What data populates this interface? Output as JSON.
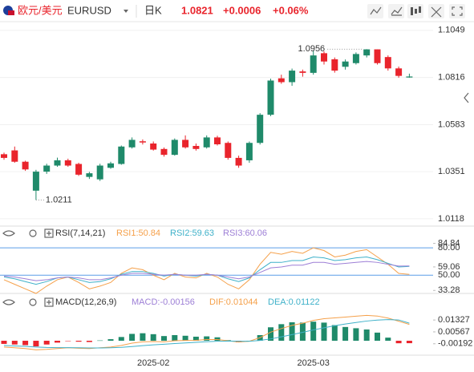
{
  "header": {
    "pair": "欧元/美元",
    "symbol": "EURUSD",
    "period": "日K",
    "price": "1.0821",
    "change": "+0.0006",
    "change_pct": "+0.06%"
  },
  "chart_data": [
    {
      "type": "candlestick",
      "categories": [
        null,
        null,
        null,
        null,
        null,
        null,
        null,
        null,
        null,
        null,
        null,
        null,
        null,
        null,
        "2025-02",
        null,
        null,
        null,
        null,
        null,
        null,
        null,
        null,
        null,
        null,
        null,
        null,
        null,
        null,
        "2025-03",
        null,
        null,
        null,
        null,
        null,
        null,
        null,
        null,
        null
      ],
      "open": [
        1.0437,
        1.0456,
        1.04,
        1.0257,
        1.0351,
        1.0381,
        1.0407,
        1.0389,
        1.0325,
        1.0313,
        1.037,
        1.0389,
        1.0471,
        1.0501,
        1.049,
        1.0463,
        1.0434,
        1.0508,
        1.0478,
        1.0471,
        1.052,
        1.0493,
        1.0419,
        1.0407,
        1.0493,
        1.0632,
        1.0812,
        1.0793,
        1.0846,
        1.0839,
        1.0936,
        1.0906,
        1.0869,
        1.0887,
        1.0925,
        1.0955,
        1.0917,
        1.0861,
        1.0816
      ],
      "high": [
        1.0445,
        1.0475,
        1.0405,
        1.036,
        1.039,
        1.042,
        1.0415,
        1.0395,
        1.035,
        1.039,
        1.04,
        1.048,
        1.052,
        1.051,
        1.05,
        1.047,
        1.0515,
        1.053,
        1.049,
        1.053,
        1.0528,
        1.05,
        1.043,
        1.05,
        1.064,
        1.081,
        1.083,
        1.086,
        1.0855,
        1.095,
        1.0945,
        1.0915,
        1.0905,
        1.094,
        1.0956,
        1.0955,
        1.0925,
        1.087,
        1.0835
      ],
      "low": [
        1.041,
        1.0395,
        1.0355,
        1.0211,
        1.034,
        1.0375,
        1.0375,
        1.033,
        1.0315,
        1.0305,
        1.0365,
        1.0385,
        1.0465,
        1.0485,
        1.0455,
        1.0425,
        1.043,
        1.0465,
        1.0455,
        1.0465,
        1.048,
        1.041,
        1.037,
        1.0395,
        1.0485,
        1.0625,
        1.0785,
        1.0775,
        1.082,
        1.083,
        1.088,
        1.084,
        1.0855,
        1.088,
        1.0915,
        1.088,
        1.085,
        1.0815,
        1.0815
      ],
      "close": [
        1.0419,
        1.04,
        1.0362,
        1.0351,
        1.0381,
        1.0407,
        1.0381,
        1.0336,
        1.0343,
        1.0381,
        1.0392,
        1.0475,
        1.0508,
        1.0495,
        1.046,
        1.0434,
        1.0508,
        1.0471,
        1.0463,
        1.052,
        1.0486,
        1.0419,
        1.0381,
        1.0493,
        1.0632,
        1.0801,
        1.0793,
        1.085,
        1.0839,
        1.0925,
        1.0895,
        1.085,
        1.0895,
        1.0932,
        1.0955,
        1.0887,
        1.0861,
        1.0824,
        1.0821
      ],
      "up_color": "#1f8a6a",
      "down_color": "#e9242c",
      "high_label": "1.0956",
      "low_label": "1.0211",
      "ylim": [
        1.009,
        1.108
      ],
      "yticks": [
        1.1049,
        1.0816,
        1.0583,
        1.0351,
        1.0118
      ],
      "grid": true
    },
    {
      "type": "line",
      "title": "RSI(7,14,21)",
      "series": [
        {
          "name": "RSI1:50.84",
          "color": "#f5a04a",
          "values": [
            45,
            40,
            35,
            30,
            38,
            45,
            48,
            42,
            35,
            38,
            42,
            52,
            58,
            56,
            50,
            45,
            52,
            48,
            47,
            52,
            48,
            40,
            35,
            45,
            62,
            75,
            73,
            76,
            74,
            80,
            77,
            70,
            72,
            76,
            78,
            70,
            62,
            52,
            50.84
          ]
        },
        {
          "name": "RSI2:59.63",
          "color": "#3fb1c9",
          "values": [
            48,
            46,
            43,
            40,
            43,
            47,
            48,
            45,
            42,
            43,
            46,
            51,
            54,
            54,
            52,
            49,
            51,
            50,
            49,
            51,
            50,
            46,
            43,
            47,
            56,
            64,
            64,
            66,
            66,
            70,
            69,
            66,
            67,
            69,
            70,
            67,
            63,
            59,
            59.63
          ]
        },
        {
          "name": "RSI3:60.06",
          "color": "#9d7fd6",
          "values": [
            49,
            48,
            46,
            44,
            45,
            47,
            48,
            47,
            45,
            45,
            47,
            50,
            52,
            52,
            51,
            50,
            51,
            50,
            50,
            51,
            50,
            48,
            46,
            48,
            53,
            58,
            59,
            61,
            61,
            64,
            64,
            62,
            63,
            64,
            65,
            64,
            62,
            60,
            60.06
          ]
        }
      ],
      "reference_lines": [
        {
          "value": 80,
          "label": "80.00"
        },
        {
          "value": 50,
          "label": "50.00"
        }
      ],
      "reference_color": "#5b9ee8",
      "ylim": [
        30,
        88
      ],
      "yticks": [
        84.84,
        59.06,
        33.28
      ]
    },
    {
      "type": "macd",
      "title": "MACD(12,26,9)",
      "histogram": {
        "name": "MACD:-0.00156",
        "color": "#9d7fd6",
        "up_color": "#1f8a6a",
        "down_color": "#e9242c",
        "values": [
          -0.002,
          -0.0024,
          -0.0028,
          -0.0036,
          -0.0024,
          -0.0012,
          -0.0002,
          -0.0006,
          -0.0008,
          0.0002,
          0.001,
          0.0024,
          0.0044,
          0.0048,
          0.0042,
          0.003,
          0.0036,
          0.0032,
          0.0026,
          0.0028,
          0.0022,
          0.0004,
          -0.001,
          0.0,
          0.0036,
          0.0086,
          0.0106,
          0.0118,
          0.0116,
          0.0122,
          0.0116,
          0.01,
          0.0088,
          0.008,
          0.0072,
          0.0052,
          0.002,
          -0.0016,
          -0.00156
        ]
      },
      "series": [
        {
          "name": "DIF:0.01044",
          "color": "#f5a04a",
          "values": [
            -0.004,
            -0.0045,
            -0.005,
            -0.0058,
            -0.0055,
            -0.005,
            -0.0045,
            -0.0048,
            -0.005,
            -0.0045,
            -0.004,
            -0.003,
            -0.0015,
            -0.0007,
            -0.0005,
            -0.0007,
            0.0,
            0.0002,
            0.0003,
            0.0008,
            0.0008,
            0.0,
            -0.0008,
            -0.0003,
            0.002,
            0.0055,
            0.0078,
            0.0098,
            0.0112,
            0.013,
            0.0141,
            0.0146,
            0.0151,
            0.0157,
            0.0162,
            0.0158,
            0.0145,
            0.0125,
            0.01044
          ]
        },
        {
          "name": "DEA:0.01122",
          "color": "#3fb1c9",
          "values": [
            -0.003,
            -0.0033,
            -0.0036,
            -0.004,
            -0.0043,
            -0.0044,
            -0.0044,
            -0.0045,
            -0.0046,
            -0.0046,
            -0.0045,
            -0.0042,
            -0.0037,
            -0.0031,
            -0.0026,
            -0.0022,
            -0.0018,
            -0.0014,
            -0.001,
            -0.0006,
            -0.0003,
            -0.0002,
            -0.0003,
            -0.0003,
            0.0002,
            0.0012,
            0.0025,
            0.0039,
            0.0054,
            0.0069,
            0.0083,
            0.0096,
            0.0107,
            0.0117,
            0.0126,
            0.0132,
            0.0135,
            0.0133,
            0.01122
          ]
        }
      ],
      "ylim": [
        -0.0087,
        0.02
      ],
      "yticks": [
        0.01327,
        0.00567,
        -0.00192
      ]
    }
  ]
}
